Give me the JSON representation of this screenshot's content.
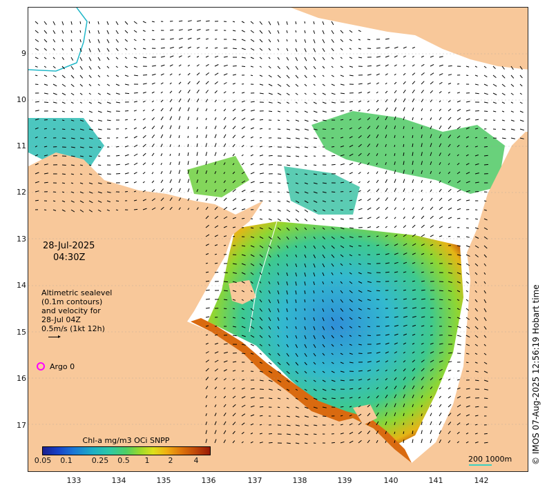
{
  "map": {
    "date": "28-Jul-2025",
    "time": "04:30Z",
    "altimetry_lines": [
      "Altimetric sealevel",
      "(0.1m contours)",
      "and velocity for",
      "28-Jul 04Z",
      "0.5m/s (1kt 12h)"
    ],
    "argo_label": "Argo 0",
    "colorbar_title": "Chl-a mg/m3 OCi SNPP",
    "colorbar_ticks": [
      "0.05",
      "0.1",
      "0.25",
      "0.5",
      "1",
      "2",
      "4"
    ],
    "scale_label": "200  1000m",
    "credit": "© IMOS 07-Aug-2025 12:56:19 Hobart time",
    "lon_ticks": [
      "133",
      "134",
      "135",
      "136",
      "137",
      "138",
      "139",
      "140",
      "141",
      "142"
    ],
    "lat_ticks": [
      "9",
      "10",
      "11",
      "12",
      "13",
      "14",
      "15",
      "16",
      "17"
    ],
    "colors": {
      "land": "#f8c89a",
      "argo": "#ff00ff",
      "scale": "#3ad0c0"
    }
  }
}
